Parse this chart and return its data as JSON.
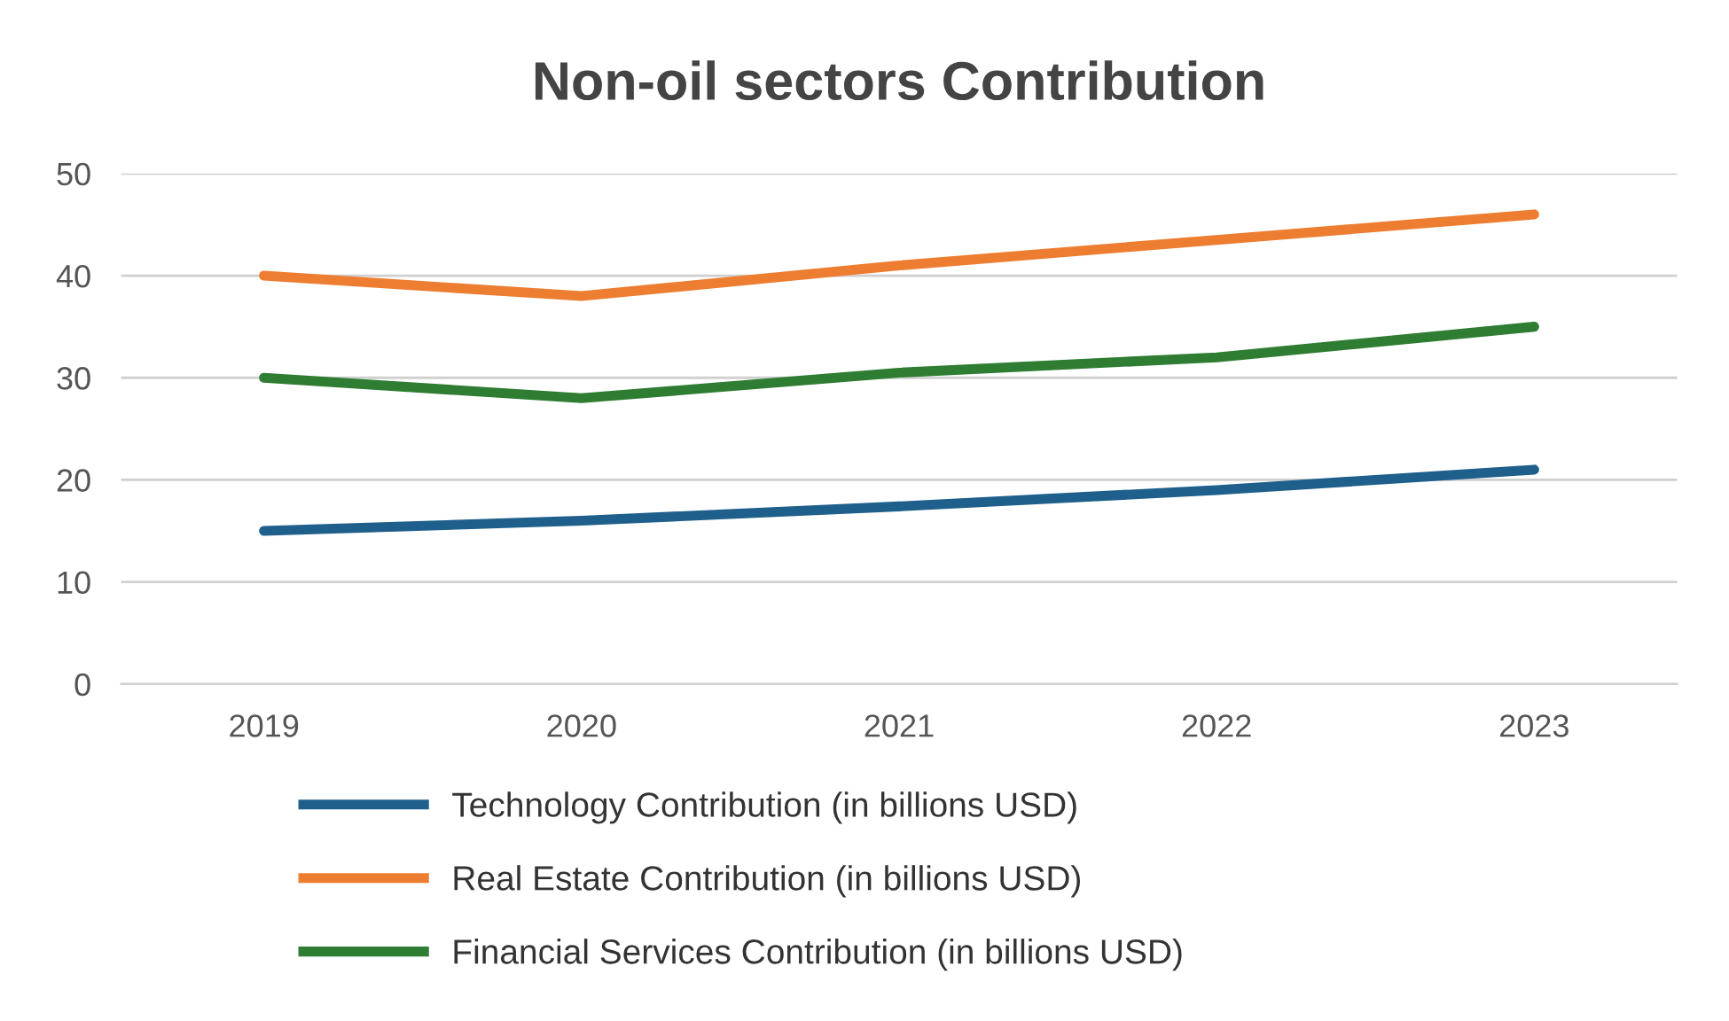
{
  "chart_data": {
    "type": "line",
    "title": "Non-oil sectors Contribution",
    "categories": [
      "2019",
      "2020",
      "2021",
      "2022",
      "2023"
    ],
    "series": [
      {
        "name": "Technology Contribution (in billions USD)",
        "color": "#1f5f8b",
        "values": [
          15,
          16,
          17.4,
          19,
          21
        ]
      },
      {
        "name": "Real Estate Contribution (in billions USD)",
        "color": "#ed7d31",
        "values": [
          40,
          38,
          41,
          43.5,
          46
        ]
      },
      {
        "name": "Financial Services Contribution (in billions USD)",
        "color": "#2e7d32",
        "values": [
          30,
          28,
          30.5,
          32,
          35
        ]
      }
    ],
    "ylim": [
      0,
      50
    ],
    "yticks": [
      0,
      10,
      20,
      30,
      40,
      50
    ],
    "grid": "y",
    "legend": "bottom",
    "marker": "none",
    "line_style": "solid"
  }
}
